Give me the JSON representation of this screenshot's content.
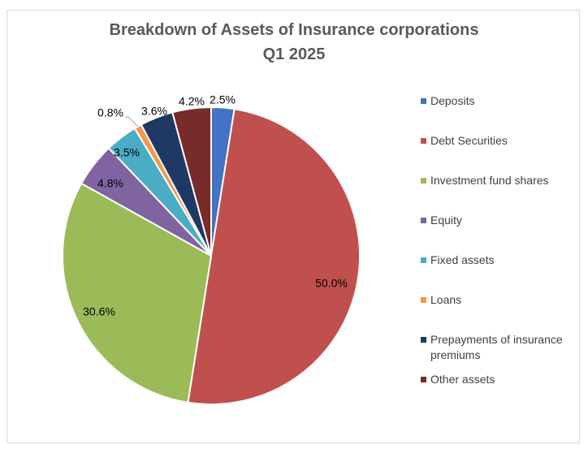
{
  "chart_data": {
    "type": "pie",
    "title": "Breakdown of Assets of Insurance corporations",
    "subtitle": "Q1 2025",
    "slices": [
      {
        "name": "Deposits",
        "value": 2.5,
        "label": "2.5%",
        "color": "#4472C4"
      },
      {
        "name": "Debt Securities",
        "value": 50.0,
        "label": "50.0%",
        "color": "#C0504D"
      },
      {
        "name": "Investment fund shares",
        "value": 30.6,
        "label": "30.6%",
        "color": "#9BBB59"
      },
      {
        "name": "Equity",
        "value": 4.8,
        "label": "4.8%",
        "color": "#8064A2"
      },
      {
        "name": "Fixed assets",
        "value": 3.5,
        "label": "3.5%",
        "color": "#4BACC6"
      },
      {
        "name": "Loans",
        "value": 0.8,
        "label": "0.8%",
        "color": "#F79646"
      },
      {
        "name": "Prepayments of insurance premiums",
        "value": 3.6,
        "label": "3.6%",
        "color": "#1F3864"
      },
      {
        "name": "Other assets",
        "value": 4.2,
        "label": "4.2%",
        "color": "#772C2A"
      }
    ],
    "legend_position": "right"
  }
}
